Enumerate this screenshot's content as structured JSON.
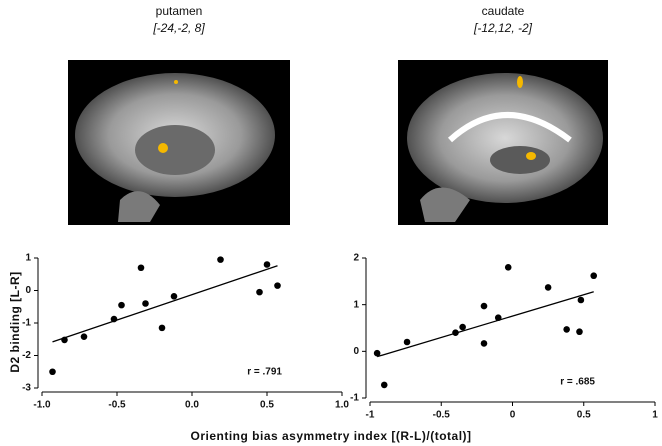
{
  "panels": [
    {
      "title": "putamen",
      "coords": "[-24,-2, 8]"
    },
    {
      "title": "caudate",
      "coords": "[-12,12, -2]"
    }
  ],
  "shared": {
    "ylabel": "D2 binding [L-R]",
    "xlabel": "Orienting bias asymmetry index [(R-L)/(total)]"
  },
  "chart_data": [
    {
      "type": "scatter",
      "color": "#000000",
      "annotation": "r = .791",
      "trendline": true,
      "x": [
        -0.93,
        -0.85,
        -0.72,
        -0.52,
        -0.47,
        -0.34,
        -0.31,
        -0.2,
        -0.12,
        0.19,
        0.45,
        0.5,
        0.57
      ],
      "y": [
        -2.5,
        -1.52,
        -1.42,
        -0.88,
        -0.45,
        0.7,
        -0.4,
        -1.15,
        -0.18,
        0.95,
        -0.05,
        0.8,
        0.15
      ],
      "xlim": [
        -1,
        1
      ],
      "xticks": [
        {
          "value": -1,
          "label": "-1.0"
        },
        -0.5,
        {
          "value": 0,
          "label": "0.0"
        },
        0.5,
        {
          "value": 1,
          "label": "1.0"
        }
      ],
      "ylim": [
        -3,
        1
      ],
      "yticks": [
        -3,
        -2,
        -1,
        0,
        1
      ]
    },
    {
      "type": "scatter",
      "color": "#000000",
      "annotation": "r = .685",
      "trendline": true,
      "x": [
        -0.95,
        -0.9,
        -0.74,
        -0.4,
        -0.35,
        -0.2,
        -0.2,
        -0.1,
        -0.03,
        0.25,
        0.38,
        0.47,
        0.48,
        0.57
      ],
      "y": [
        -0.04,
        -0.72,
        0.2,
        0.4,
        0.52,
        0.97,
        0.17,
        0.72,
        1.8,
        1.37,
        0.47,
        0.42,
        1.1,
        1.62
      ],
      "xlim": [
        -1,
        1
      ],
      "xticks": [
        -1,
        -0.5,
        0,
        0.5,
        1
      ],
      "ylim": [
        -1,
        2
      ],
      "yticks": [
        -1,
        0,
        1,
        2
      ]
    }
  ]
}
